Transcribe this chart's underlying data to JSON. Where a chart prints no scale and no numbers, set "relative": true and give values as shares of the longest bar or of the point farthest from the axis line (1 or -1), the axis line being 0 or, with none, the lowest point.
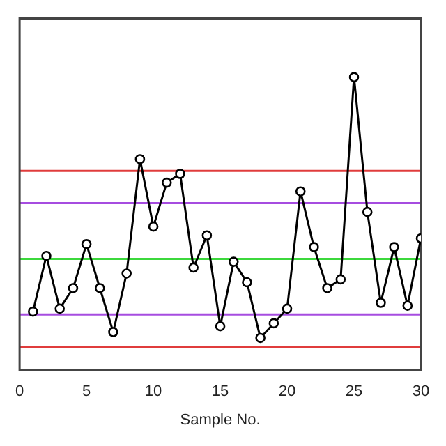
{
  "chart_data": {
    "type": "line",
    "relative": true,
    "xlabel": "Sample No.",
    "x": [
      1,
      2,
      3,
      4,
      5,
      6,
      7,
      8,
      9,
      10,
      11,
      12,
      13,
      14,
      15,
      16,
      17,
      18,
      19,
      20,
      21,
      22,
      23,
      24,
      25,
      26,
      27,
      28,
      29,
      30
    ],
    "series": [
      {
        "color": "#000000",
        "values": [
          0.2,
          0.39,
          0.21,
          0.28,
          0.43,
          0.28,
          0.13,
          0.33,
          0.72,
          0.49,
          0.64,
          0.67,
          0.35,
          0.46,
          0.15,
          0.37,
          0.3,
          0.11,
          0.16,
          0.21,
          0.61,
          0.42,
          0.28,
          0.31,
          1,
          0.54,
          0.23,
          0.42,
          0.22,
          0.45
        ]
      }
    ],
    "xlim": [
      0,
      30
    ],
    "xticks": [
      0,
      5,
      10,
      15,
      20,
      25,
      30
    ],
    "ref_lines": [
      {
        "axis": "y",
        "value": 0.68,
        "color": "#e03c3c"
      },
      {
        "axis": "y",
        "value": 0.57,
        "color": "#a64ce0"
      },
      {
        "axis": "y",
        "value": 0.38,
        "color": "#3cd83c"
      },
      {
        "axis": "y",
        "value": 0.19,
        "color": "#a64ce0"
      },
      {
        "axis": "y",
        "value": 0.08,
        "color": "#e03c3c"
      }
    ],
    "grid": false,
    "legend": false,
    "marker": "circle",
    "line_style": "solid",
    "tick_labels": "x"
  }
}
